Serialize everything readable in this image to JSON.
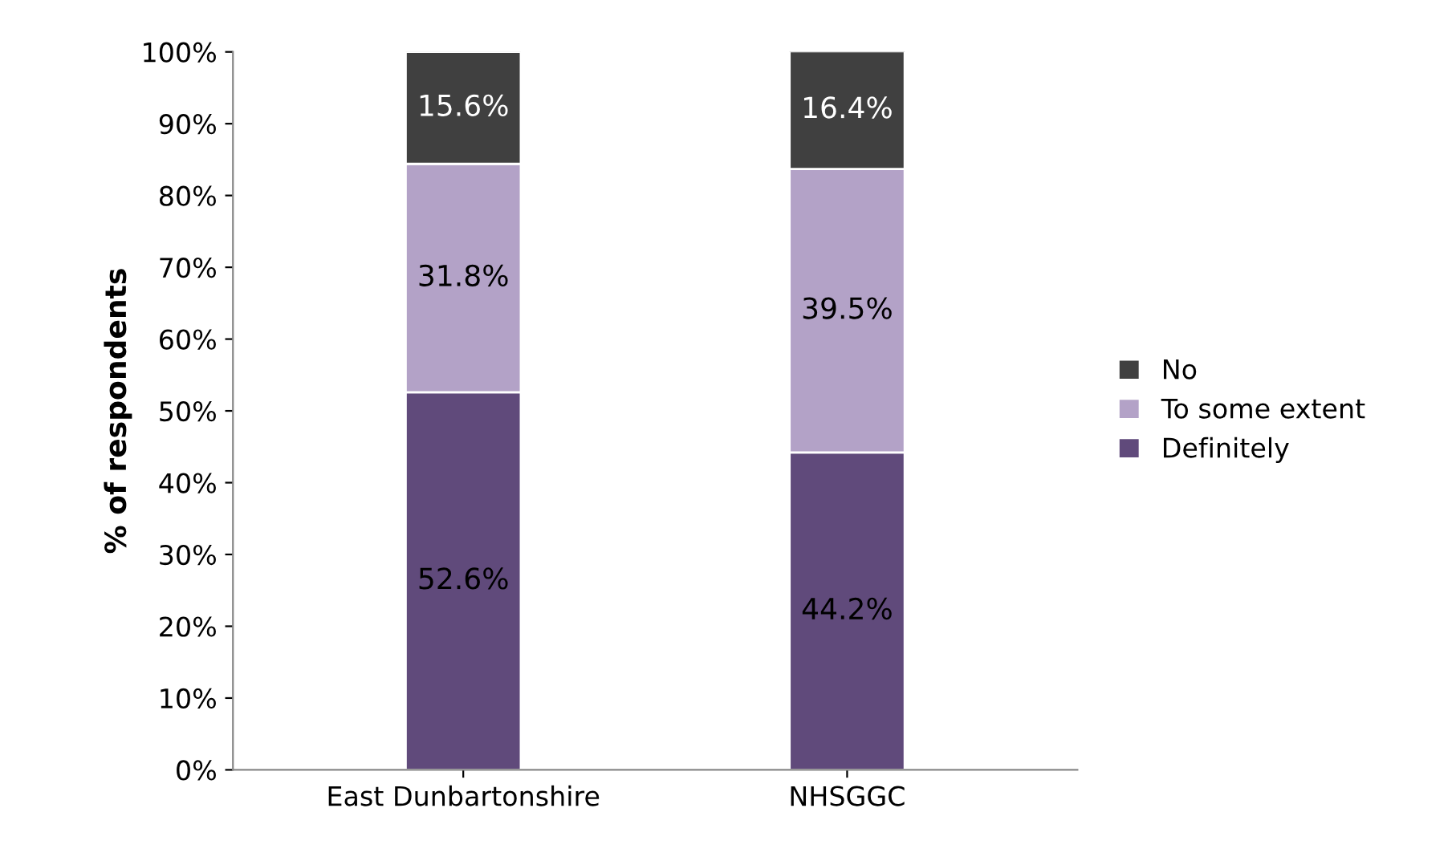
{
  "chart_data": {
    "type": "bar",
    "stacked": true,
    "ylabel": "% of respondents",
    "categories": [
      "East Dunbartonshire",
      "NHSGGC"
    ],
    "series": [
      {
        "name": "Definitely",
        "color": "#604a7b",
        "values": [
          52.6,
          44.2
        ],
        "value_labels": [
          "52.6%",
          "44.2%"
        ]
      },
      {
        "name": "To some extent",
        "color": "#b3a2c7",
        "values": [
          31.8,
          39.5
        ],
        "value_labels": [
          "31.8%",
          "39.5%"
        ]
      },
      {
        "name": "No",
        "color": "#404040",
        "values": [
          15.6,
          16.4
        ],
        "value_labels": [
          "15.6%",
          "16.4%"
        ]
      }
    ],
    "ylim": [
      0,
      100
    ],
    "yticks": [
      {
        "value": 0,
        "label": "0%"
      },
      {
        "value": 10,
        "label": "10%"
      },
      {
        "value": 20,
        "label": "20%"
      },
      {
        "value": 30,
        "label": "30%"
      },
      {
        "value": 40,
        "label": "40%"
      },
      {
        "value": 50,
        "label": "50%"
      },
      {
        "value": 60,
        "label": "60%"
      },
      {
        "value": 70,
        "label": "70%"
      },
      {
        "value": 80,
        "label": "80%"
      },
      {
        "value": 90,
        "label": "90%"
      },
      {
        "value": 100,
        "label": "100%"
      }
    ],
    "grid": false,
    "legend": "right"
  }
}
